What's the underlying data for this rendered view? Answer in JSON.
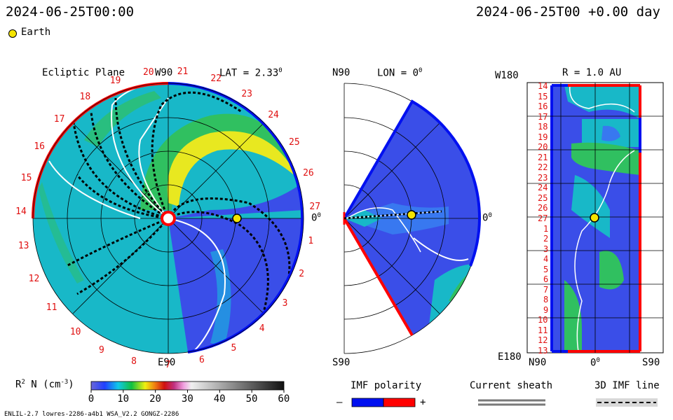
{
  "header": {
    "left_timestamp": "2024-06-25T00:00",
    "right_timestamp": "2024-06-25T00 +0.00 day"
  },
  "legend_earth": {
    "label": "Earth",
    "color": "#f4e400"
  },
  "panel1": {
    "title": "Ecliptic Plane",
    "lat_label": "LAT = 2.33",
    "deg": "0",
    "top_label": "W90",
    "bottom_label": "E90",
    "right_label": "0",
    "carrington_rotations": [
      "1",
      "2",
      "3",
      "4",
      "5",
      "6",
      "7",
      "8",
      "9",
      "10",
      "11",
      "12",
      "13",
      "14",
      "15",
      "16",
      "17",
      "18",
      "19",
      "20",
      "21",
      "22",
      "23",
      "24",
      "25",
      "26",
      "27"
    ]
  },
  "panel2": {
    "title": "LON = 0",
    "deg": "0",
    "top_label": "N90",
    "bottom_label": "S90",
    "right_label": "0"
  },
  "panel3": {
    "title": "R = 1.0 AU",
    "top_label": "W180",
    "bottom_label": "E180",
    "x_left": "N90",
    "x_mid": "0",
    "x_right": "S90",
    "rows": [
      "14",
      "15",
      "16",
      "17",
      "18",
      "19",
      "20",
      "21",
      "22",
      "23",
      "24",
      "25",
      "26",
      "27",
      "1",
      "2",
      "3",
      "4",
      "5",
      "6",
      "7",
      "8",
      "9",
      "10",
      "11",
      "12",
      "13"
    ]
  },
  "colorbar": {
    "label": "N (cm",
    "label_prefix": "R",
    "sup2": "2",
    "sup3": "-3",
    "ticks": [
      "0",
      "10",
      "20",
      "30",
      "40",
      "50",
      "60"
    ],
    "range": [
      0,
      60
    ]
  },
  "imf_polarity": {
    "title": "IMF polarity",
    "minus": "–",
    "plus": "+",
    "neg_color": "#0010f0",
    "pos_color": "#ff0000"
  },
  "current_sheath": {
    "title": "Current sheath"
  },
  "imf_line": {
    "title": "3D IMF line"
  },
  "footer": {
    "left": "ENLIL-2.7 lowres-2286-a4b1 WSA_V2.2 GONGZ-2286"
  },
  "chart_data": {
    "type": "heatmap",
    "title": "",
    "quantity": "N (cm-3)",
    "scale_range": [
      0,
      60
    ],
    "earth_radius_au": 1.0,
    "earth_lat_deg": 2.33,
    "earth_lon_deg": 0
  }
}
